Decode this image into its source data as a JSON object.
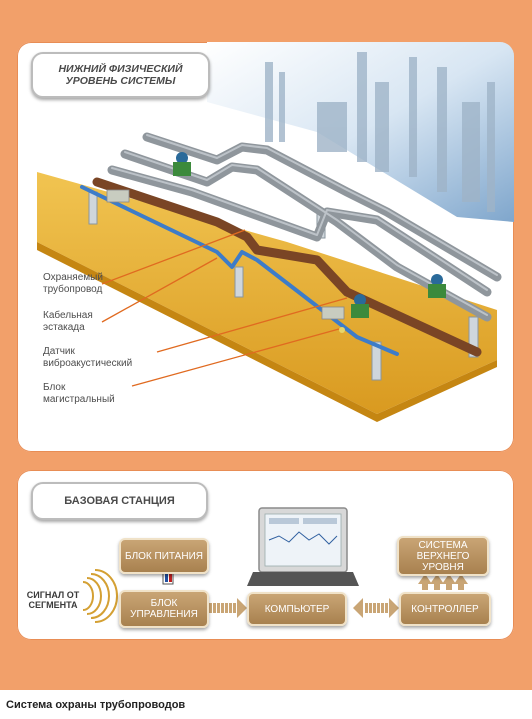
{
  "top_panel": {
    "title": "НИЖНИЙ ФИЗИЧЕСКИЙ УРОВЕНЬ СИСТЕМЫ",
    "labels": [
      "Охраняемый трубопровод",
      "Кабельная эстакада",
      "Датчик виброакустический",
      "Блок магистральный"
    ]
  },
  "station": {
    "title": "БАЗОВАЯ СТАНЦИЯ",
    "signal_label": "СИГНАЛ ОТ СЕГМЕНТА",
    "power_block": "БЛОК ПИТАНИЯ",
    "control_block": "БЛОК УПРАВЛЕНИЯ",
    "computer": "КОМПЬЮТЕР",
    "controller": "КОНТРОЛЛЕР",
    "upper_system": "СИСТЕМА ВЕРХНЕГО УРОВНЯ"
  },
  "caption": "Система охраны трубопроводов",
  "colors": {
    "frame": "#f2a06a",
    "box": "#b8905e",
    "pipe_gray": "#8f969c",
    "pipe_brown": "#7a4525",
    "cable_blue": "#3d7cc9",
    "platform": "#e8b33a",
    "valve": "#2a6a9a",
    "leader_line": "#e06a20"
  }
}
